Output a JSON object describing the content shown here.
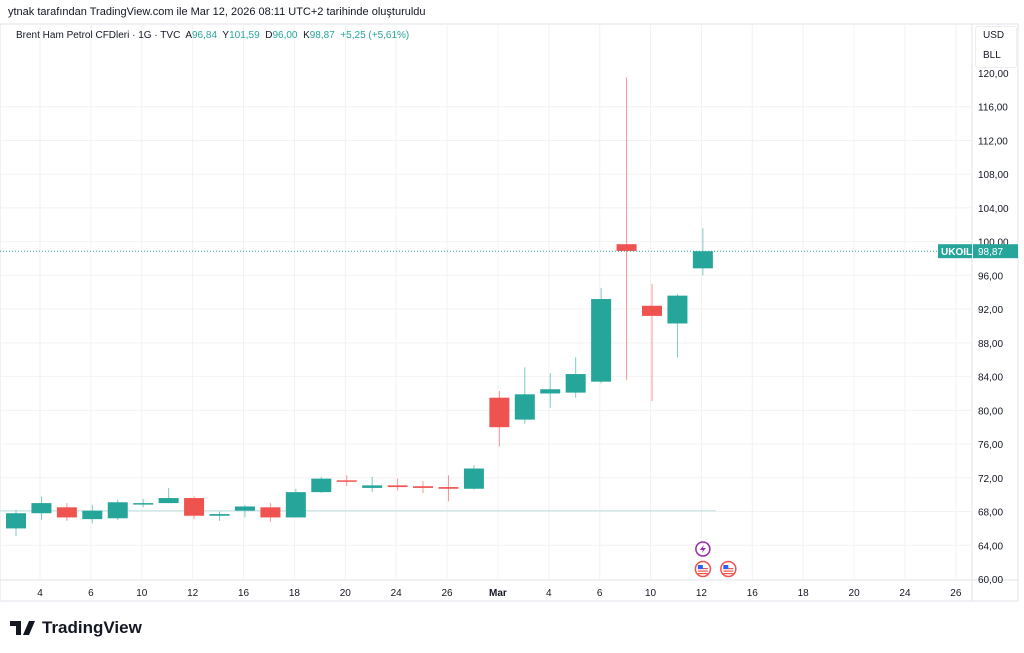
{
  "credit": "ytnak tarafından TradingView.com ile Mar 12, 2026 08:11 UTC+2 tarihinde oluşturuldu",
  "legend": {
    "symbol": "Brent Ham Petrol CFDleri · 1G · TVC",
    "open_label": "A",
    "open": "96,84",
    "high_label": "Y",
    "high": "101,59",
    "low_label": "D",
    "low": "96,00",
    "close_label": "K",
    "close": "98,87",
    "change": "+5,25 (+5,61%)"
  },
  "units": {
    "currency": "USD",
    "unit": "BLL"
  },
  "logo": "TradingView",
  "colors": {
    "up": "#26a69a",
    "down": "#ef5350",
    "grid": "#f2f2f2",
    "event": "#9c27b0"
  },
  "chart_data": {
    "type": "candlestick",
    "ylim": [
      60,
      120
    ],
    "y_ticks": [
      "120,00",
      "116,00",
      "112,00",
      "108,00",
      "104,00",
      "100,00",
      "96,00",
      "92,00",
      "88,00",
      "84,00",
      "80,00",
      "76,00",
      "72,00",
      "68,00",
      "64,00",
      "60,00"
    ],
    "x_ticks": [
      "4",
      "6",
      "10",
      "12",
      "16",
      "18",
      "20",
      "24",
      "26",
      "Mar",
      "4",
      "6",
      "10",
      "12",
      "16",
      "18",
      "20",
      "24",
      "26"
    ],
    "grid": true,
    "last_price": {
      "symbol": "UKOIL",
      "value": 98.87,
      "label": "98,87"
    },
    "reference_line": 68.1,
    "candles": [
      {
        "o": 66.0,
        "h": 68.2,
        "l": 65.1,
        "c": 67.8
      },
      {
        "o": 67.8,
        "h": 69.8,
        "l": 67.0,
        "c": 69.0
      },
      {
        "o": 68.5,
        "h": 69.0,
        "l": 66.9,
        "c": 67.3
      },
      {
        "o": 67.1,
        "h": 68.8,
        "l": 66.6,
        "c": 68.1
      },
      {
        "o": 67.2,
        "h": 69.4,
        "l": 67.0,
        "c": 69.1
      },
      {
        "o": 68.9,
        "h": 69.5,
        "l": 68.5,
        "c": 69.0
      },
      {
        "o": 69.0,
        "h": 70.8,
        "l": 69.0,
        "c": 69.6
      },
      {
        "o": 69.6,
        "h": 69.8,
        "l": 67.1,
        "c": 67.5
      },
      {
        "o": 67.5,
        "h": 68.0,
        "l": 66.9,
        "c": 67.7
      },
      {
        "o": 68.1,
        "h": 68.8,
        "l": 67.3,
        "c": 68.6
      },
      {
        "o": 68.5,
        "h": 69.0,
        "l": 66.8,
        "c": 67.3
      },
      {
        "o": 67.3,
        "h": 70.7,
        "l": 67.3,
        "c": 70.3
      },
      {
        "o": 70.3,
        "h": 72.1,
        "l": 70.2,
        "c": 71.9
      },
      {
        "o": 71.7,
        "h": 72.3,
        "l": 71.0,
        "c": 71.6
      },
      {
        "o": 70.8,
        "h": 72.1,
        "l": 70.3,
        "c": 71.1
      },
      {
        "o": 71.1,
        "h": 71.9,
        "l": 70.5,
        "c": 70.9
      },
      {
        "o": 71.0,
        "h": 71.6,
        "l": 70.2,
        "c": 70.8
      },
      {
        "o": 70.9,
        "h": 72.3,
        "l": 69.2,
        "c": 70.7
      },
      {
        "o": 70.7,
        "h": 73.5,
        "l": 70.6,
        "c": 73.1
      },
      {
        "o": 81.5,
        "h": 82.3,
        "l": 75.7,
        "c": 78.0
      },
      {
        "o": 78.9,
        "h": 85.1,
        "l": 78.4,
        "c": 81.9
      },
      {
        "o": 82.0,
        "h": 84.4,
        "l": 80.3,
        "c": 82.5
      },
      {
        "o": 82.1,
        "h": 86.3,
        "l": 81.5,
        "c": 84.3
      },
      {
        "o": 83.4,
        "h": 94.5,
        "l": 83.2,
        "c": 93.2
      },
      {
        "o": 99.7,
        "h": 119.5,
        "l": 83.6,
        "c": 98.9
      },
      {
        "o": 92.4,
        "h": 95.0,
        "l": 81.1,
        "c": 91.2
      },
      {
        "o": 90.3,
        "h": 93.8,
        "l": 86.3,
        "c": 93.6
      },
      {
        "o": 96.84,
        "h": 101.59,
        "l": 96.0,
        "c": 98.87
      }
    ],
    "events": [
      {
        "type": "lightning-icon",
        "candle": 27,
        "row": 0
      },
      {
        "type": "us-flag-icon",
        "candle": 27,
        "row": 1
      },
      {
        "type": "us-flag-icon",
        "candle": 28,
        "row": 1
      }
    ]
  }
}
